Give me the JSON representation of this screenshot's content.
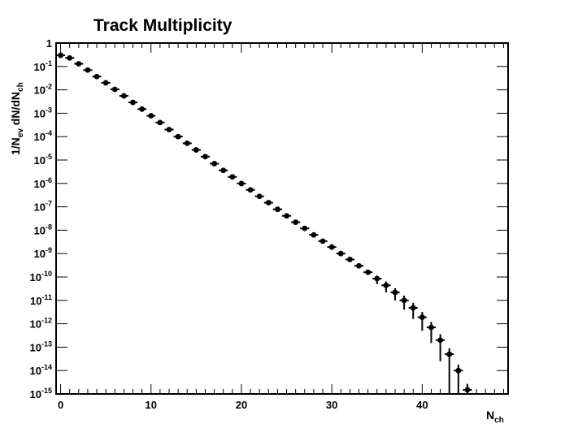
{
  "chart_data": {
    "type": "scatter",
    "title": "Track Multiplicity",
    "xlabel": {
      "main": "N",
      "sub": "ch"
    },
    "ylabel": {
      "parts": [
        "1/N",
        "ev",
        " dN/dN",
        "ch"
      ]
    },
    "xlim": [
      -0.5,
      49.5
    ],
    "ylim": [
      1e-15,
      1
    ],
    "yscale": "log",
    "grid": false,
    "x_major_ticks": [
      0,
      10,
      20,
      30,
      40
    ],
    "y_tick_labels": [
      {
        "exp": 0,
        "text": "1"
      },
      {
        "exp": -1,
        "base": "10",
        "sup": "-1"
      },
      {
        "exp": -2,
        "base": "10",
        "sup": "-2"
      },
      {
        "exp": -3,
        "base": "10",
        "sup": "-3"
      },
      {
        "exp": -4,
        "base": "10",
        "sup": "-4"
      },
      {
        "exp": -5,
        "base": "10",
        "sup": "-5"
      },
      {
        "exp": -6,
        "base": "10",
        "sup": "-6"
      },
      {
        "exp": -7,
        "base": "10",
        "sup": "-7"
      },
      {
        "exp": -8,
        "base": "10",
        "sup": "-8"
      },
      {
        "exp": -9,
        "base": "10",
        "sup": "-9"
      },
      {
        "exp": -10,
        "base": "10",
        "sup": "-10"
      },
      {
        "exp": -11,
        "base": "10",
        "sup": "-11"
      },
      {
        "exp": -12,
        "base": "10",
        "sup": "-12"
      },
      {
        "exp": -13,
        "base": "10",
        "sup": "-13"
      },
      {
        "exp": -14,
        "base": "10",
        "sup": "-14"
      },
      {
        "exp": -15,
        "base": "10",
        "sup": "-15"
      }
    ],
    "marker_color": "#000000",
    "series": [
      {
        "points": [
          {
            "x": 0,
            "y": 0.3
          },
          {
            "x": 1,
            "y": 0.23
          },
          {
            "x": 2,
            "y": 0.13
          },
          {
            "x": 3,
            "y": 0.07
          },
          {
            "x": 4,
            "y": 0.037
          },
          {
            "x": 5,
            "y": 0.02
          },
          {
            "x": 6,
            "y": 0.0105
          },
          {
            "x": 7,
            "y": 0.0055
          },
          {
            "x": 8,
            "y": 0.0029
          },
          {
            "x": 9,
            "y": 0.0015
          },
          {
            "x": 10,
            "y": 0.00078
          },
          {
            "x": 11,
            "y": 0.0004
          },
          {
            "x": 12,
            "y": 0.0002
          },
          {
            "x": 13,
            "y": 0.0001
          },
          {
            "x": 14,
            "y": 5.2e-05
          },
          {
            "x": 15,
            "y": 2.7e-05
          },
          {
            "x": 16,
            "y": 1.4e-05
          },
          {
            "x": 17,
            "y": 7e-06
          },
          {
            "x": 18,
            "y": 3.6e-06
          },
          {
            "x": 19,
            "y": 1.9e-06
          },
          {
            "x": 20,
            "y": 9.9e-07
          },
          {
            "x": 21,
            "y": 5.3e-07
          },
          {
            "x": 22,
            "y": 2.8e-07
          },
          {
            "x": 23,
            "y": 1.5e-07
          },
          {
            "x": 24,
            "y": 7.8e-08
          },
          {
            "x": 25,
            "y": 4.1e-08
          },
          {
            "x": 26,
            "y": 2.2e-08
          },
          {
            "x": 27,
            "y": 1.2e-08
          },
          {
            "x": 28,
            "y": 6.3e-09
          },
          {
            "x": 29,
            "y": 3.4e-09
          },
          {
            "x": 30,
            "y": 1.9e-09
          },
          {
            "x": 31,
            "y": 1e-09
          },
          {
            "x": 32,
            "y": 5.6e-10
          },
          {
            "x": 33,
            "y": 3e-10
          },
          {
            "x": 34,
            "y": 1.6e-10
          },
          {
            "x": 35,
            "y": 8.5e-11,
            "err_lo": 3.5e-11,
            "err_hi": 3e-11
          },
          {
            "x": 36,
            "y": 4.4e-11,
            "err_lo": 2.2e-11,
            "err_hi": 2e-11
          },
          {
            "x": 37,
            "y": 2.2e-11,
            "err_lo": 1.2e-11,
            "err_hi": 1.1e-11
          },
          {
            "x": 38,
            "y": 1e-11,
            "err_lo": 6e-12,
            "err_hi": 6e-12
          },
          {
            "x": 39,
            "y": 4.8e-12,
            "err_lo": 3.2e-12,
            "err_hi": 3e-12
          },
          {
            "x": 40,
            "y": 1.9e-12,
            "err_lo": 1.4e-12,
            "err_hi": 1.3e-12
          },
          {
            "x": 41,
            "y": 7e-13,
            "err_lo": 5.5e-13,
            "err_hi": 5e-13
          },
          {
            "x": 42,
            "y": 2e-13,
            "err_lo": 1.75e-13,
            "err_hi": 1.6e-13
          },
          {
            "x": 43,
            "y": 5e-14,
            "err_lo": 5e-14,
            "err_hi": 4e-14
          },
          {
            "x": 44,
            "y": 1e-14,
            "err_lo": 1e-14,
            "err_hi": 8e-15
          },
          {
            "x": 45,
            "y": 1.5e-15,
            "err_lo": 1.5e-15,
            "err_hi": 1.2e-15
          }
        ]
      }
    ]
  }
}
